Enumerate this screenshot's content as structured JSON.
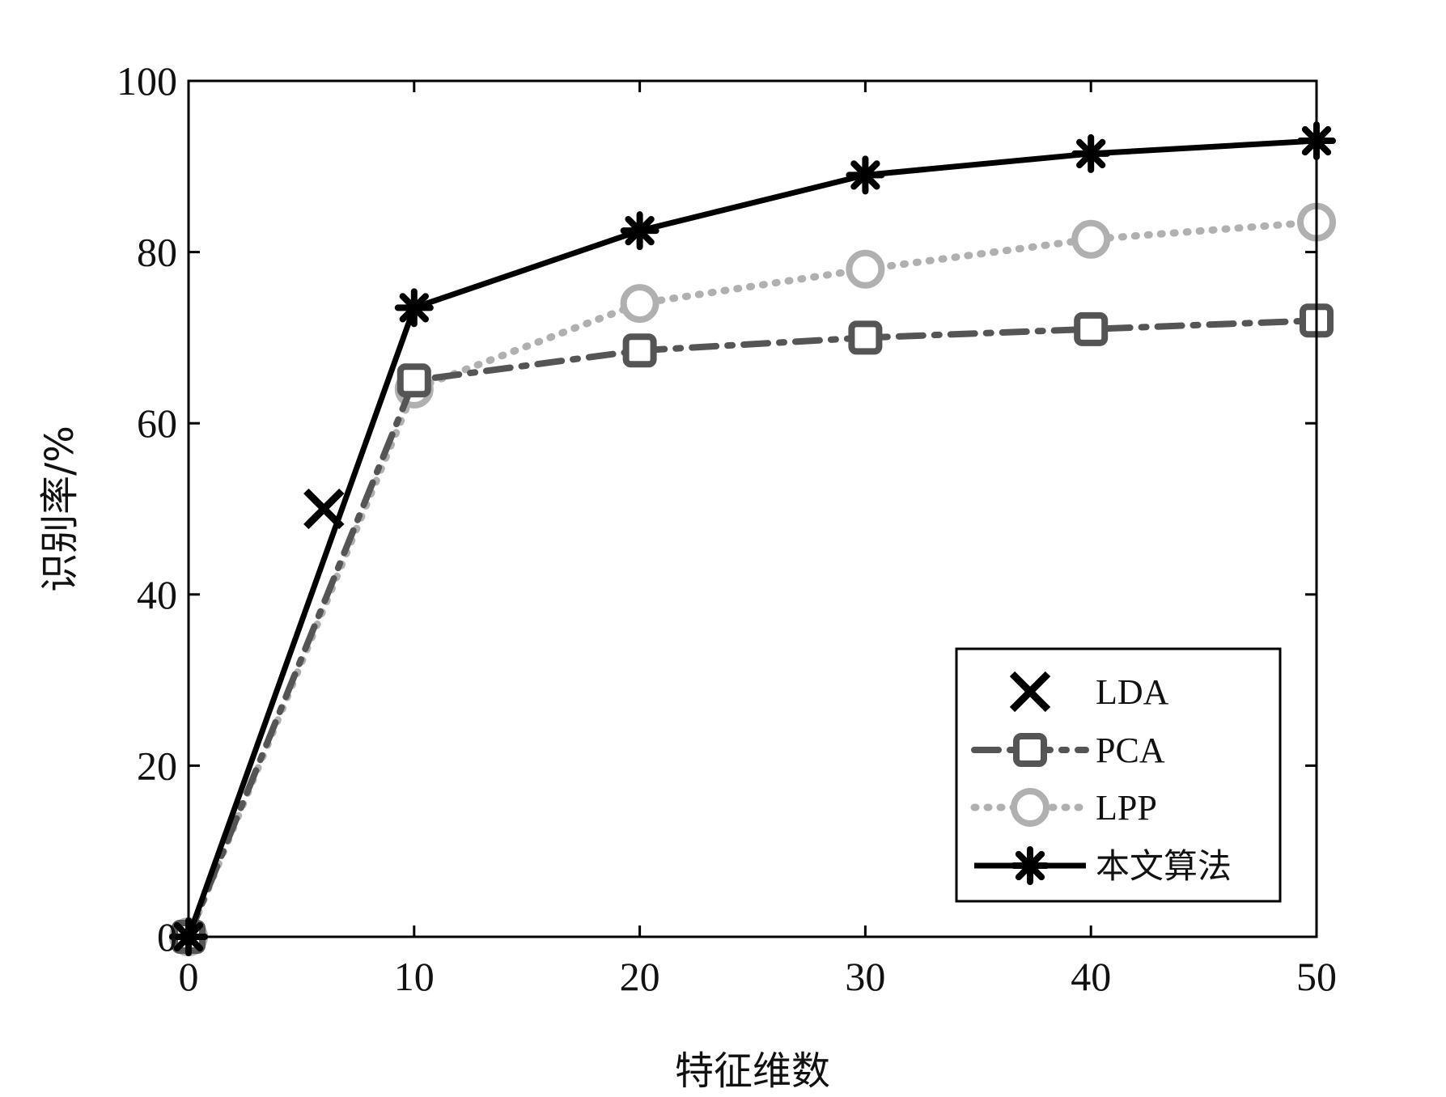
{
  "chart_data": {
    "type": "line",
    "xlabel": "特征维数",
    "ylabel": "识别率/%",
    "xlim": [
      0,
      50
    ],
    "ylim": [
      0,
      100
    ],
    "xticks": [
      0,
      10,
      20,
      30,
      40,
      50
    ],
    "yticks": [
      0,
      20,
      40,
      60,
      80,
      100
    ],
    "xtick_labels": [
      "0",
      "10",
      "20",
      "30",
      "40",
      "50"
    ],
    "ytick_labels": [
      "0",
      "20",
      "40",
      "60",
      "80",
      "100"
    ],
    "grid": false,
    "legend_position": "bottom-right",
    "series": [
      {
        "name": "LDA",
        "marker": "x",
        "line_style": "none",
        "color": "#000000",
        "x": [
          6
        ],
        "y": [
          50
        ]
      },
      {
        "name": "PCA",
        "marker": "square",
        "line_style": "dash-dot",
        "color": "#555555",
        "x": [
          0,
          10,
          20,
          30,
          40,
          50
        ],
        "y": [
          0,
          65,
          68.5,
          70,
          71,
          72
        ]
      },
      {
        "name": "LPP",
        "marker": "circle",
        "line_style": "dotted",
        "color": "#b0b0b0",
        "x": [
          0,
          10,
          20,
          30,
          40,
          50
        ],
        "y": [
          0,
          64,
          74,
          78,
          81.5,
          83.5
        ]
      },
      {
        "name": "本文算法",
        "marker": "asterisk",
        "line_style": "solid",
        "color": "#000000",
        "x": [
          0,
          10,
          20,
          30,
          40,
          50
        ],
        "y": [
          0,
          73.5,
          82.5,
          89,
          91.5,
          93
        ]
      }
    ]
  }
}
